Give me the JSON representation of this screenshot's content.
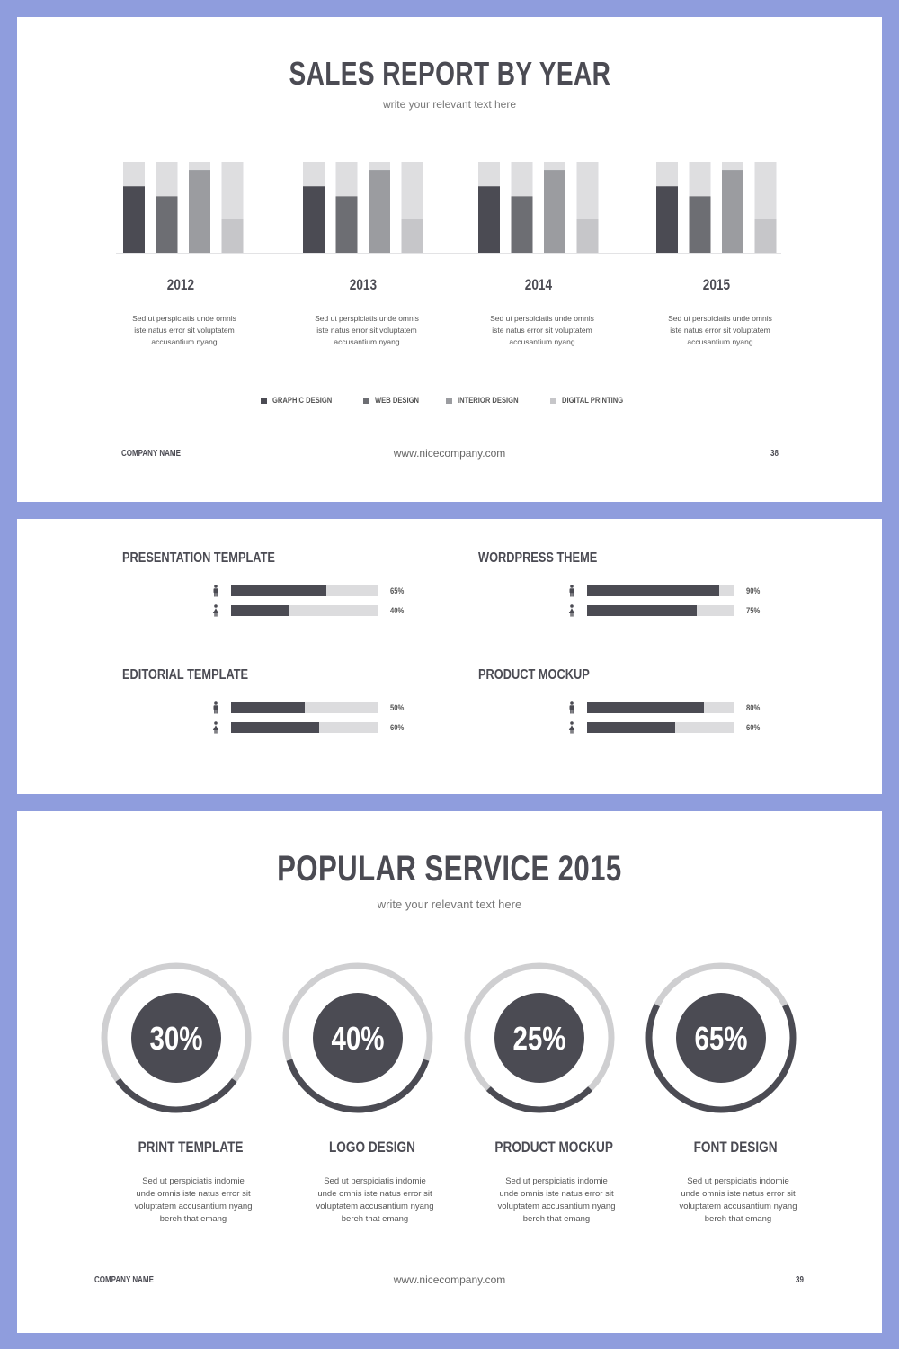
{
  "colors": {
    "background": "#8f9ddd",
    "graphic_design": "#4b4b53",
    "web_design": "#6d6e73",
    "interior_design": "#9b9ca0",
    "digital_printing": "#c6c6c9",
    "bar_background": "#dedee0",
    "ring_track": "#cfcfd1",
    "ring_fill": "#4b4b53"
  },
  "slide1": {
    "title": "SALES REPORT BY YEAR",
    "subtitle": "write your relevant text here",
    "footer": {
      "company": "COMPANY NAME",
      "website": "www.nicecompany.com",
      "page": "38"
    }
  },
  "slide2": {
    "footer": {}
  },
  "slide3": {
    "title": "POPULAR SERVICE 2015",
    "subtitle": "write your relevant text here",
    "footer": {
      "company": "COMPANY NAME",
      "website": "www.nicecompany.com",
      "page": "39"
    }
  },
  "chart_data": [
    {
      "type": "bar",
      "title": "SALES REPORT BY YEAR",
      "subtitle": "write your relevant text here",
      "categories": [
        "2012",
        "2013",
        "2014",
        "2015"
      ],
      "legend_position": "bottom",
      "ylim": [
        0,
        100
      ],
      "series": [
        {
          "name": "GRAPHIC DESIGN",
          "values": [
            73,
            73,
            73,
            73
          ]
        },
        {
          "name": "WEB DESIGN",
          "values": [
            62,
            62,
            62,
            62
          ]
        },
        {
          "name": "INTERIOR DESIGN",
          "values": [
            91,
            91,
            91,
            91
          ]
        },
        {
          "name": "DIGITAL PRINTING",
          "values": [
            37,
            37,
            37,
            37
          ]
        }
      ],
      "category_descriptions": [
        [
          "Sed ut perspiciatis unde omnis",
          "iste natus error sit voluptatem",
          "accusantium nyang"
        ],
        [
          "Sed ut perspiciatis unde omnis",
          "iste natus error sit voluptatem",
          "accusantium nyang"
        ],
        [
          "Sed ut perspiciatis unde omnis",
          "iste natus error sit voluptatem",
          "accusantium nyang"
        ],
        [
          "Sed ut perspiciatis unde omnis",
          "iste natus error sit voluptatem",
          "accusantium nyang"
        ]
      ]
    },
    {
      "type": "bar",
      "orientation": "horizontal",
      "groups": [
        {
          "title": "PRESENTATION TEMPLATE",
          "values": [
            65,
            40
          ],
          "labels": [
            "65%",
            "40%"
          ]
        },
        {
          "title": "WORDPRESS THEME",
          "values": [
            90,
            75
          ],
          "labels": [
            "90%",
            "75%"
          ]
        },
        {
          "title": "EDITORIAL TEMPLATE",
          "values": [
            50,
            60
          ],
          "labels": [
            "50%",
            "60%"
          ]
        },
        {
          "title": "PRODUCT MOCKUP",
          "values": [
            80,
            60
          ],
          "labels": [
            "80%",
            "60%"
          ]
        }
      ],
      "icons": [
        "male-person-icon",
        "female-person-icon"
      ],
      "xlim": [
        0,
        100
      ]
    },
    {
      "type": "pie",
      "style": "donut",
      "title": "POPULAR SERVICE 2015",
      "subtitle": "write your relevant text here",
      "items": [
        {
          "label": "PRINT TEMPLATE",
          "value": 30,
          "display": "30%",
          "description": [
            "Sed ut perspiciatis indomie",
            "unde omnis iste natus error sit",
            "voluptatem accusantium nyang",
            "bereh that emang"
          ]
        },
        {
          "label": "LOGO DESIGN",
          "value": 40,
          "display": "40%",
          "description": [
            "Sed ut perspiciatis indomie",
            "unde omnis iste natus error sit",
            "voluptatem accusantium nyang",
            "bereh that emang"
          ]
        },
        {
          "label": "PRODUCT MOCKUP",
          "value": 25,
          "display": "25%",
          "description": [
            "Sed ut perspiciatis indomie",
            "unde omnis iste natus error sit",
            "voluptatem accusantium nyang",
            "bereh that emang"
          ]
        },
        {
          "label": "FONT DESIGN",
          "value": 65,
          "display": "65%",
          "description": [
            "Sed ut perspiciatis indomie",
            "unde omnis iste natus error sit",
            "voluptatem accusantium nyang",
            "bereh that emang"
          ]
        }
      ]
    }
  ]
}
